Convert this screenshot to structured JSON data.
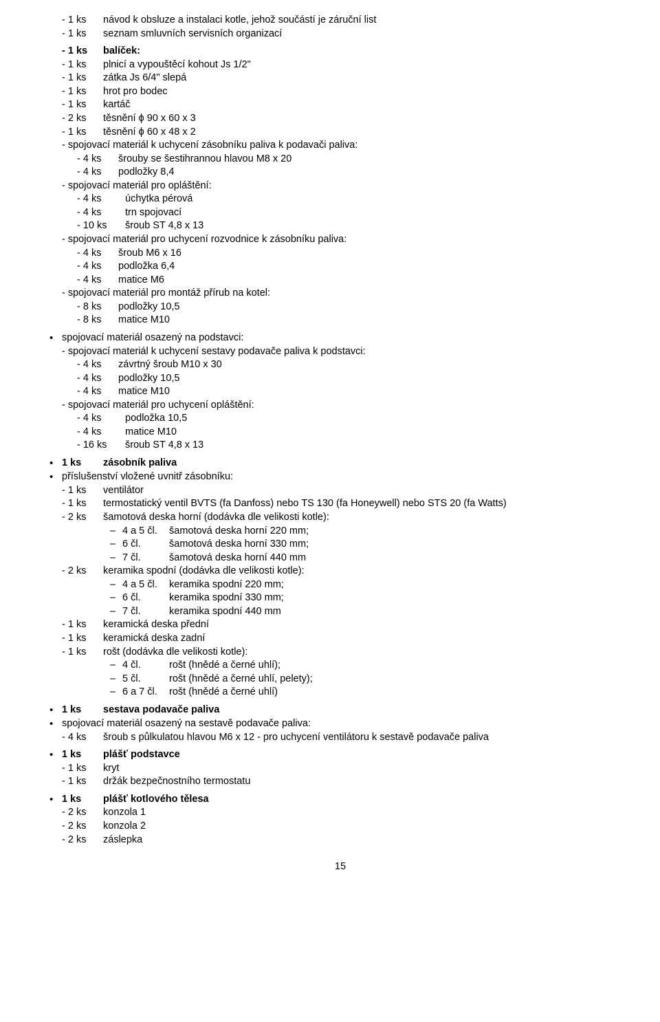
{
  "top": [
    {
      "q": "- 1 ks",
      "t": "návod k obsluze a instalaci kotle, jehož součástí je záruční list"
    },
    {
      "q": "- 1 ks",
      "t": "seznam smluvních servisních organizací"
    }
  ],
  "balicek": {
    "q": "- 1 ks",
    "t": "balíček:"
  },
  "balicek_items": [
    {
      "q": "- 1 ks",
      "t": "plnicí a vypouštěcí kohout Js 1/2\""
    },
    {
      "q": "- 1 ks",
      "t": "zátka Js 6/4\" slepá"
    },
    {
      "q": "- 1 ks",
      "t": "hrot pro bodec"
    },
    {
      "q": "- 1 ks",
      "t": "kartáč"
    },
    {
      "q": "- 2 ks",
      "t": "těsnění ϕ 90 x 60 x 3"
    },
    {
      "q": "- 1 ks",
      "t": "těsnění ϕ 60 x 48 x 2"
    }
  ],
  "spoj1_head": "- spojovací materiál k uchycení zásobníku paliva k podavači paliva:",
  "spoj1": [
    {
      "q": "- 4 ks",
      "t": "šrouby se šestihrannou hlavou M8 x 20"
    },
    {
      "q": "- 4 ks",
      "t": "podložky 8,4"
    }
  ],
  "spoj2_head": "- spojovací materiál pro opláštění:",
  "spoj2": [
    {
      "q": "- 4 ks",
      "t": "úchytka pérová"
    },
    {
      "q": "- 4 ks",
      "t": "trn spojovací"
    },
    {
      "q": "- 10 ks",
      "t": "šroub ST 4,8 x 13"
    }
  ],
  "spoj3_head": "- spojovací materiál pro uchycení rozvodnice k zásobníku paliva:",
  "spoj3": [
    {
      "q": "- 4 ks",
      "t": "šroub M6 x 16"
    },
    {
      "q": "- 4 ks",
      "t": "podložka 6,4"
    },
    {
      "q": "- 4 ks",
      "t": "matice M6"
    }
  ],
  "spoj4_head": "- spojovací materiál pro montáž přírub na kotel:",
  "spoj4": [
    {
      "q": "- 8 ks",
      "t": "podložky 10,5"
    },
    {
      "q": "- 8 ks",
      "t": "matice M10"
    }
  ],
  "b1_head": "spojovací materiál osazený na podstavci:",
  "b1_s1_head": "- spojovací materiál k uchycení sestavy podavače paliva k podstavci:",
  "b1_s1": [
    {
      "q": "- 4 ks",
      "t": "závrtný šroub M10 x 30"
    },
    {
      "q": "- 4 ks",
      "t": "podložky 10,5"
    },
    {
      "q": "- 4 ks",
      "t": "matice M10"
    }
  ],
  "b1_s2_head": "- spojovací materiál pro uchycení opláštění:",
  "b1_s2": [
    {
      "q": "- 4 ks",
      "t": "podložka 10,5"
    },
    {
      "q": "- 4 ks",
      "t": "matice M10"
    },
    {
      "q": "- 16 ks",
      "t": "šroub ST 4,8 x 13"
    }
  ],
  "b2": {
    "q": "1 ks",
    "t": "zásobník paliva"
  },
  "b3_head": "příslušenství vložené uvnitř zásobníku:",
  "b3_items": [
    {
      "q": "- 1 ks",
      "t": "ventilátor"
    },
    {
      "q": "- 1 ks",
      "t": "termostatický ventil BVTS (fa Danfoss) nebo TS 130 (fa Honeywell) nebo STS 20 (fa Watts)",
      "justify": true
    },
    {
      "q": "- 2 ks",
      "t": "šamotová deska horní (dodávka dle velikosti kotle):"
    }
  ],
  "b3_sub1": [
    {
      "q": "4 a 5 čl.",
      "t": "šamotová deska horní 220 mm;"
    },
    {
      "q": "6 čl.",
      "t": "šamotová deska horní 330 mm;"
    },
    {
      "q": "7 čl.",
      "t": "šamotová deska horní 440 mm"
    }
  ],
  "b3_items2": [
    {
      "q": "- 2 ks",
      "t": "keramika spodní (dodávka dle velikosti kotle):"
    }
  ],
  "b3_sub2": [
    {
      "q": "4 a 5 čl.",
      "t": "keramika spodní 220 mm;"
    },
    {
      "q": "6 čl.",
      "t": "keramika spodní 330 mm;"
    },
    {
      "q": "7 čl.",
      "t": "keramika spodní 440 mm"
    }
  ],
  "b3_items3": [
    {
      "q": "- 1 ks",
      "t": "keramická deska přední"
    },
    {
      "q": "- 1 ks",
      "t": "keramická deska zadní"
    },
    {
      "q": "- 1 ks",
      "t": "rošt (dodávka dle velikosti kotle):"
    }
  ],
  "b3_sub3": [
    {
      "q": "4 čl.",
      "t": "rošt (hnědé a černé uhlí);"
    },
    {
      "q": "5 čl.",
      "t": "rošt (hnědé a černé uhlí, pelety);"
    },
    {
      "q": "6 a 7 čl.",
      "t": "rošt (hnědé a černé uhlí)"
    }
  ],
  "b4": {
    "q": "1 ks",
    "t": "sestava podavače paliva"
  },
  "b5_head": "spojovací materiál osazený na sestavě podavače paliva:",
  "b5_items": [
    {
      "q": "- 4 ks",
      "t": "šroub s půlkulatou hlavou M6 x 12 - pro uchycení ventilátoru k sestavě podavače paliva"
    }
  ],
  "b6": {
    "q": "1 ks",
    "t": "plášť podstavce"
  },
  "b6_items": [
    {
      "q": "- 1 ks",
      "t": "kryt"
    },
    {
      "q": "- 1 ks",
      "t": "držák bezpečnostního termostatu"
    }
  ],
  "b7": {
    "q": "1 ks",
    "t": "plášť kotlového tělesa"
  },
  "b7_items": [
    {
      "q": "- 2 ks",
      "t": "konzola 1"
    },
    {
      "q": "- 2 ks",
      "t": "konzola 2"
    },
    {
      "q": "- 2 ks",
      "t": "záslepka"
    }
  ],
  "page": "15"
}
